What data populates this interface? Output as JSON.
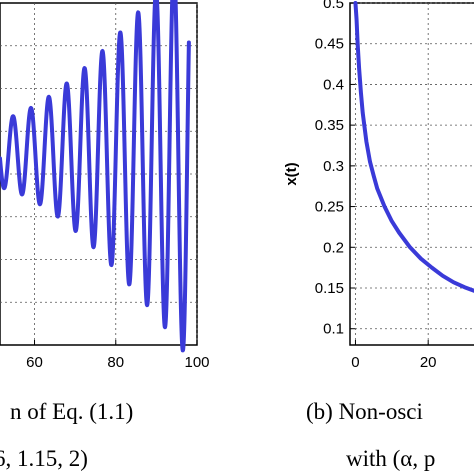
{
  "captions": {
    "left_line1": "n of Eq. (1.1)",
    "left_line2": "6, 1.15, 2)",
    "right_line1": "(b) Non-osci",
    "right_line2": "with (α, p"
  },
  "chart_data": [
    {
      "type": "line",
      "panel": "left",
      "xlabel": "",
      "ylabel": "",
      "xlim": [
        51.5,
        100
      ],
      "x_ticks": [
        60,
        80,
        100
      ],
      "x_tick_labels": [
        "60",
        "80",
        "100"
      ],
      "ylim": [
        0,
        1
      ],
      "grid": true,
      "color": "#3a3ad8",
      "oscillation": {
        "x_start": 51.5,
        "x_end": 98,
        "period": 4.4,
        "phase": 53.6,
        "center": 0.56,
        "amp_start": 0.1,
        "amp_end": 0.6,
        "growth": 1.5
      }
    },
    {
      "type": "line",
      "panel": "right",
      "xlabel": "",
      "ylabel": "x(t)",
      "xlim": [
        -1.5,
        37
      ],
      "x_ticks": [
        0,
        20
      ],
      "x_tick_labels": [
        "0",
        "20"
      ],
      "ylim": [
        0.08,
        0.5
      ],
      "y_ticks": [
        0.1,
        0.15,
        0.2,
        0.25,
        0.3,
        0.35,
        0.4,
        0.45,
        0.5
      ],
      "y_tick_labels": [
        "0.1",
        "0.15",
        "0.2",
        "0.25",
        "0.3",
        "0.35",
        "0.4",
        "0.45",
        "0.5"
      ],
      "grid": true,
      "color": "#3a3ad8",
      "x": [
        0,
        0.3,
        0.6,
        1,
        1.5,
        2,
        3,
        4,
        5,
        6,
        8,
        10,
        12,
        15,
        18,
        21,
        24,
        27,
        30,
        33,
        37
      ],
      "y": [
        0.5,
        0.48,
        0.45,
        0.42,
        0.39,
        0.365,
        0.33,
        0.305,
        0.288,
        0.272,
        0.25,
        0.232,
        0.218,
        0.2,
        0.186,
        0.175,
        0.165,
        0.157,
        0.151,
        0.146,
        0.14
      ]
    }
  ]
}
